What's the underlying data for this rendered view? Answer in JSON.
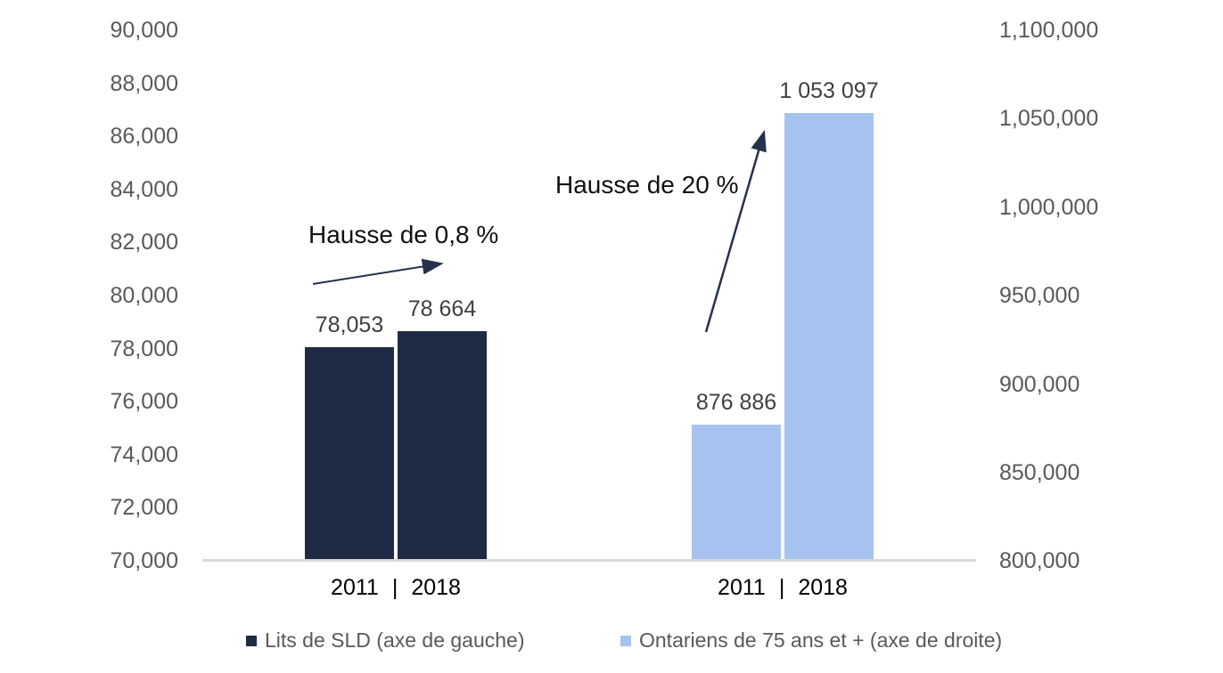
{
  "chart_data": {
    "type": "bar",
    "title": "",
    "grid": false,
    "legend_position": "bottom",
    "left_axis": {
      "min": 70000,
      "max": 90000,
      "step": 2000,
      "ticks": [
        "90,000",
        "88,000",
        "86,000",
        "84,000",
        "82,000",
        "80,000",
        "78,000",
        "76,000",
        "74,000",
        "72,000",
        "70,000"
      ]
    },
    "right_axis": {
      "min": 800000,
      "max": 1100000,
      "step": 50000,
      "ticks": [
        "1,100,000",
        "1,050,000",
        "1,000,000",
        "950,000",
        "900,000",
        "850,000",
        "800,000"
      ]
    },
    "groups": [
      {
        "name": "Lits de SLD (axe de gauche)",
        "axis": "left",
        "categories": [
          "2011",
          "2018"
        ],
        "values": [
          78053,
          78664
        ],
        "data_labels": [
          "78,053",
          "78 664"
        ]
      },
      {
        "name": "Ontariens de 75 ans et + (axe de droite)",
        "axis": "right",
        "categories": [
          "2011",
          "2018"
        ],
        "values": [
          876886,
          1053097
        ],
        "data_labels": [
          "876 886",
          "1 053 097"
        ]
      }
    ],
    "annotations": [
      "Hausse de 0,8 %",
      "Hausse de 20 %"
    ]
  },
  "axes": {
    "left": {
      "ticks": [
        "90,000",
        "88,000",
        "86,000",
        "84,000",
        "82,000",
        "80,000",
        "78,000",
        "76,000",
        "74,000",
        "72,000",
        "70,000"
      ]
    },
    "right": {
      "ticks": [
        "1,100,000",
        "1,050,000",
        "1,000,000",
        "950,000",
        "900,000",
        "850,000",
        "800,000"
      ]
    }
  },
  "bars": {
    "labels": {
      "l2011": "78,053",
      "l2018": "78 664",
      "r2011": "876 886",
      "r2018": "1 053 097"
    }
  },
  "categories": {
    "year1": "2011",
    "separator": "|",
    "year2": "2018"
  },
  "annotations": {
    "left": {
      "text": "Hausse de 0,8 %"
    },
    "right": {
      "text": "Hausse de 20 %"
    }
  },
  "legend": {
    "items": [
      {
        "label": "Lits de SLD (axe de gauche)"
      },
      {
        "label": "Ontariens de 75 ans et + (axe de droite)"
      }
    ]
  },
  "colors": {
    "dark_navy": "#1f2b45",
    "light_blue": "#a6c3ef",
    "arrow": "#26324c",
    "axis_line": "#d9d9d9",
    "tick_text": "#595959"
  }
}
